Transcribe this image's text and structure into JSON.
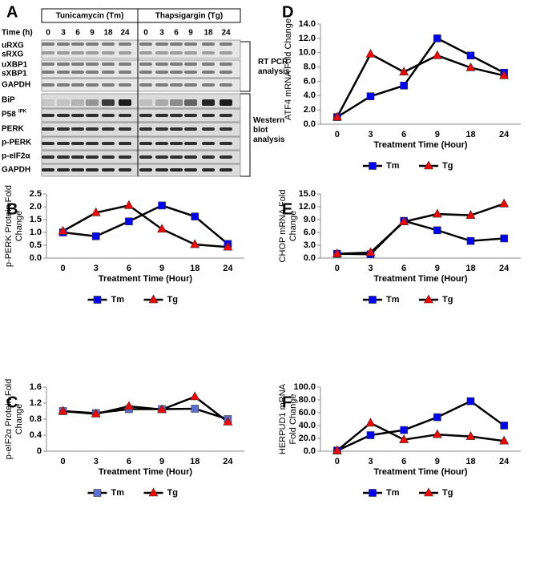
{
  "blot": {
    "panel": "A",
    "treatments": [
      "Tunicamycin (Tm)",
      "Thapsigargin (Tg)"
    ],
    "time_label": "Time (h)",
    "times": [
      "0",
      "3",
      "6",
      "9",
      "18",
      "24"
    ],
    "rows": [
      "uRXG",
      "sRXG",
      "uXBP1",
      "sXBP1",
      "GAPDH",
      "BiP",
      "P58",
      "PERK",
      "p-PERK",
      "p-eIF2α",
      "GAPDH"
    ],
    "p58_superscript": "IPK",
    "groups": [
      "RT PCR analysis",
      "Western blot analysis"
    ]
  },
  "chart_data": [
    {
      "type": "line",
      "panel": "B",
      "y_label": "p-PERK Protein Fold Change",
      "x_label": "Treatment Time (Hour)",
      "categories": [
        "0",
        "3",
        "6",
        "9",
        "18",
        "24"
      ],
      "series": [
        {
          "name": "Tm",
          "color": "#0000ff",
          "marker": "square",
          "values": [
            1.0,
            0.85,
            1.43,
            2.05,
            1.62,
            0.55
          ]
        },
        {
          "name": "Tg",
          "color": "#ff0000",
          "marker": "triangle",
          "values": [
            1.05,
            1.77,
            2.05,
            1.13,
            0.53,
            0.43
          ]
        }
      ],
      "line_color": "#000000",
      "ylim": [
        0,
        2.5
      ],
      "yticks": [
        {
          "value": 0,
          "label": "0.0"
        },
        0.5,
        {
          "value": 1,
          "label": "1.0"
        },
        1.5,
        {
          "value": 2,
          "label": "2.0"
        },
        2.5
      ]
    },
    {
      "type": "line",
      "panel": "C",
      "y_label": "p-eIF2α Protein Fold Change",
      "x_label": "Treatment Time (Hour)",
      "categories": [
        "0",
        "3",
        "6",
        "9",
        "18",
        "24"
      ],
      "series": [
        {
          "name": "Tm",
          "color": "#5a6fd6",
          "marker": "square",
          "values": [
            1.0,
            0.95,
            1.05,
            1.05,
            1.06,
            0.8
          ]
        },
        {
          "name": "Tg",
          "color": "#ff0000",
          "marker": "triangle",
          "values": [
            1.0,
            0.93,
            1.12,
            1.04,
            1.36,
            0.73
          ]
        }
      ],
      "line_color": "#000000",
      "ylim": [
        0,
        1.6
      ],
      "yticks": [
        0,
        0.4,
        0.8,
        1.2,
        1.6
      ]
    },
    {
      "type": "line",
      "panel": "D",
      "y_label": "ATF4 mRNA Fold Change",
      "x_label": "Treatment Time (Hour)",
      "categories": [
        "0",
        "3",
        "6",
        "9",
        "18",
        "24"
      ],
      "series": [
        {
          "name": "Tm",
          "color": "#0000ff",
          "marker": "square",
          "values": [
            1.0,
            3.9,
            5.4,
            12.0,
            9.6,
            7.2
          ]
        },
        {
          "name": "Tg",
          "color": "#ff0000",
          "marker": "triangle",
          "values": [
            1.0,
            9.8,
            7.3,
            9.6,
            7.9,
            6.8
          ]
        }
      ],
      "line_color": "#000000",
      "ylim": [
        0,
        14
      ],
      "yticks": [
        {
          "value": 0,
          "label": "0.0"
        },
        {
          "value": 2,
          "label": "2.0"
        },
        {
          "value": 4,
          "label": "4.0"
        },
        {
          "value": 6,
          "label": "6.0"
        },
        {
          "value": 8,
          "label": "8.0"
        },
        {
          "value": 10,
          "label": "10.0"
        },
        {
          "value": 12,
          "label": "12.0"
        },
        {
          "value": 14,
          "label": "14.0"
        }
      ]
    },
    {
      "type": "line",
      "panel": "E",
      "y_label": "CHOP mRNA Fold Change",
      "x_label": "Treatment Time (Hour)",
      "categories": [
        "0",
        "3",
        "6",
        "9",
        "18",
        "24"
      ],
      "series": [
        {
          "name": "Tm",
          "color": "#0000ff",
          "marker": "square",
          "values": [
            1.0,
            0.9,
            8.7,
            6.5,
            4.0,
            4.6
          ]
        },
        {
          "name": "Tg",
          "color": "#ff0000",
          "marker": "triangle",
          "values": [
            1.0,
            1.3,
            8.5,
            10.3,
            10.0,
            12.7
          ]
        }
      ],
      "line_color": "#000000",
      "ylim": [
        0,
        15
      ],
      "yticks": [
        {
          "value": 0,
          "label": "0.0"
        },
        {
          "value": 3,
          "label": "3.0"
        },
        {
          "value": 6,
          "label": "6.0"
        },
        {
          "value": 9,
          "label": "9.0"
        },
        {
          "value": 12,
          "label": "12.0"
        },
        {
          "value": 15,
          "label": "15.0"
        }
      ]
    },
    {
      "type": "line",
      "panel": "F",
      "y_label": "HERPUD1 mRNA Fold Change",
      "x_label": "Treatment Time (Hour)",
      "categories": [
        "0",
        "3",
        "6",
        "9",
        "18",
        "24"
      ],
      "series": [
        {
          "name": "Tm",
          "color": "#0000ff",
          "marker": "square",
          "values": [
            1,
            25,
            33,
            53,
            78,
            40
          ]
        },
        {
          "name": "Tg",
          "color": "#ff0000",
          "marker": "triangle",
          "values": [
            1,
            44,
            18,
            26,
            23,
            16
          ]
        }
      ],
      "line_color": "#000000",
      "ylim": [
        0,
        100
      ],
      "yticks": [
        {
          "value": 0,
          "label": "0.0"
        },
        {
          "value": 20,
          "label": "20.0"
        },
        {
          "value": 40,
          "label": "40.0"
        },
        {
          "value": 60,
          "label": "60.0"
        },
        {
          "value": 80,
          "label": "80.0"
        },
        {
          "value": 100,
          "label": "100.0"
        }
      ]
    }
  ]
}
